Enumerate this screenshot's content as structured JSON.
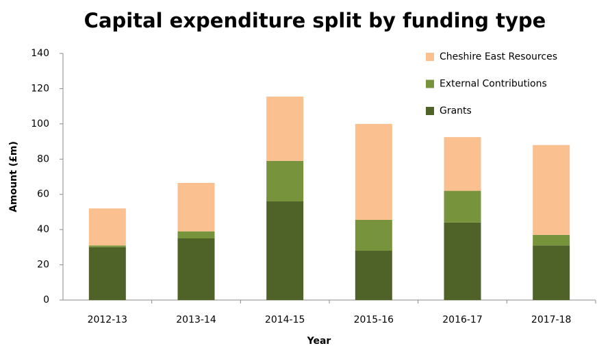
{
  "chart_data": {
    "type": "bar",
    "stacked": true,
    "title": "Capital expenditure split by funding type",
    "x_label": "Year",
    "y_label": "Amount (£m)",
    "categories": [
      "2012-13",
      "2013-14",
      "2014-15",
      "2015-16",
      "2016-17",
      "2017-18"
    ],
    "series": [
      {
        "name": "Grants",
        "color": "#4f6228",
        "values": [
          30,
          35,
          56,
          28,
          44,
          31
        ]
      },
      {
        "name": "External Contributions",
        "color": "#77933c",
        "values": [
          1,
          4,
          23,
          17.5,
          18,
          6
        ]
      },
      {
        "name": "Cheshire East Resources",
        "color": "#fac090",
        "values": [
          21,
          27.5,
          36.5,
          54.5,
          30.5,
          51
        ]
      }
    ],
    "ylim": [
      0,
      140
    ],
    "yticks": [
      0,
      20,
      40,
      60,
      80,
      100,
      120,
      140
    ],
    "grid": false,
    "legend": "upper right"
  }
}
